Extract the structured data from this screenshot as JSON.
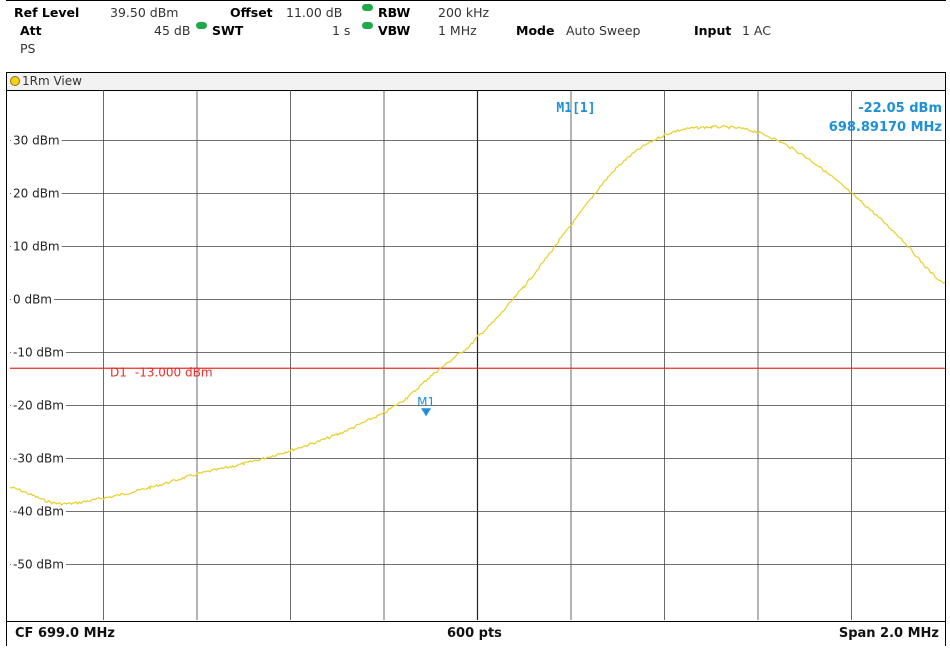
{
  "header": {
    "ref_level_label": "Ref Level",
    "ref_level_value": "39.50 dBm",
    "offset_label": "Offset",
    "offset_value": "11.00 dB",
    "rbw_label": "RBW",
    "rbw_value": "200 kHz",
    "att_label": "Att",
    "att_value": "45 dB",
    "swt_label": "SWT",
    "swt_value": "1 s",
    "vbw_label": "VBW",
    "vbw_value": "1 MHz",
    "mode_label": "Mode",
    "mode_value": "Auto Sweep",
    "input_label": "Input",
    "input_value": "1 AC",
    "ps_label": "PS"
  },
  "view": {
    "label": "1Rm View",
    "indicator_color": "#f5d21a"
  },
  "marker": {
    "name": "M1",
    "readout_label": "M1[1]",
    "level": "-22.05 dBm",
    "frequency": "698.89170 MHz",
    "color": "#1e90d6"
  },
  "display_line": {
    "label": "D1",
    "value_text": "-13.000 dBm",
    "value": -13.0,
    "color": "#e8302a"
  },
  "footer": {
    "center_freq": "CF 699.0 MHz",
    "points": "600 pts",
    "span": "Span 2.0 MHz"
  },
  "chart_data": {
    "type": "line",
    "trace_color": "#e6cf2a",
    "y_tick_labels": [
      "30 dBm",
      "20 dBm",
      "10 dBm",
      "0 dBm",
      "-10 dBm",
      "-20 dBm",
      "-30 dBm",
      "-40 dBm",
      "-50 dBm"
    ],
    "y_tick_values": [
      30,
      20,
      10,
      0,
      -10,
      -20,
      -30,
      -40,
      -50
    ],
    "ylim": [
      -60.5,
      39.5
    ],
    "xlim": [
      698.0,
      700.0
    ],
    "x_divisions": 10,
    "grid": true,
    "series": [
      {
        "x": [
          698.0,
          698.1,
          698.2,
          698.3,
          698.4,
          698.5,
          698.6,
          698.7,
          698.8,
          698.85,
          698.9,
          698.95,
          699.0,
          699.1,
          699.2,
          699.3,
          699.4,
          699.5,
          699.6,
          699.7,
          699.8,
          699.9,
          700.0
        ],
        "y": [
          -35.5,
          -38.5,
          -37.5,
          -35.5,
          -33,
          -31,
          -28.5,
          -25.5,
          -21.5,
          -18.5,
          -14.5,
          -11,
          -7,
          2.5,
          14,
          25,
          31,
          32.5,
          31.5,
          27,
          20,
          12,
          3
        ]
      }
    ]
  }
}
